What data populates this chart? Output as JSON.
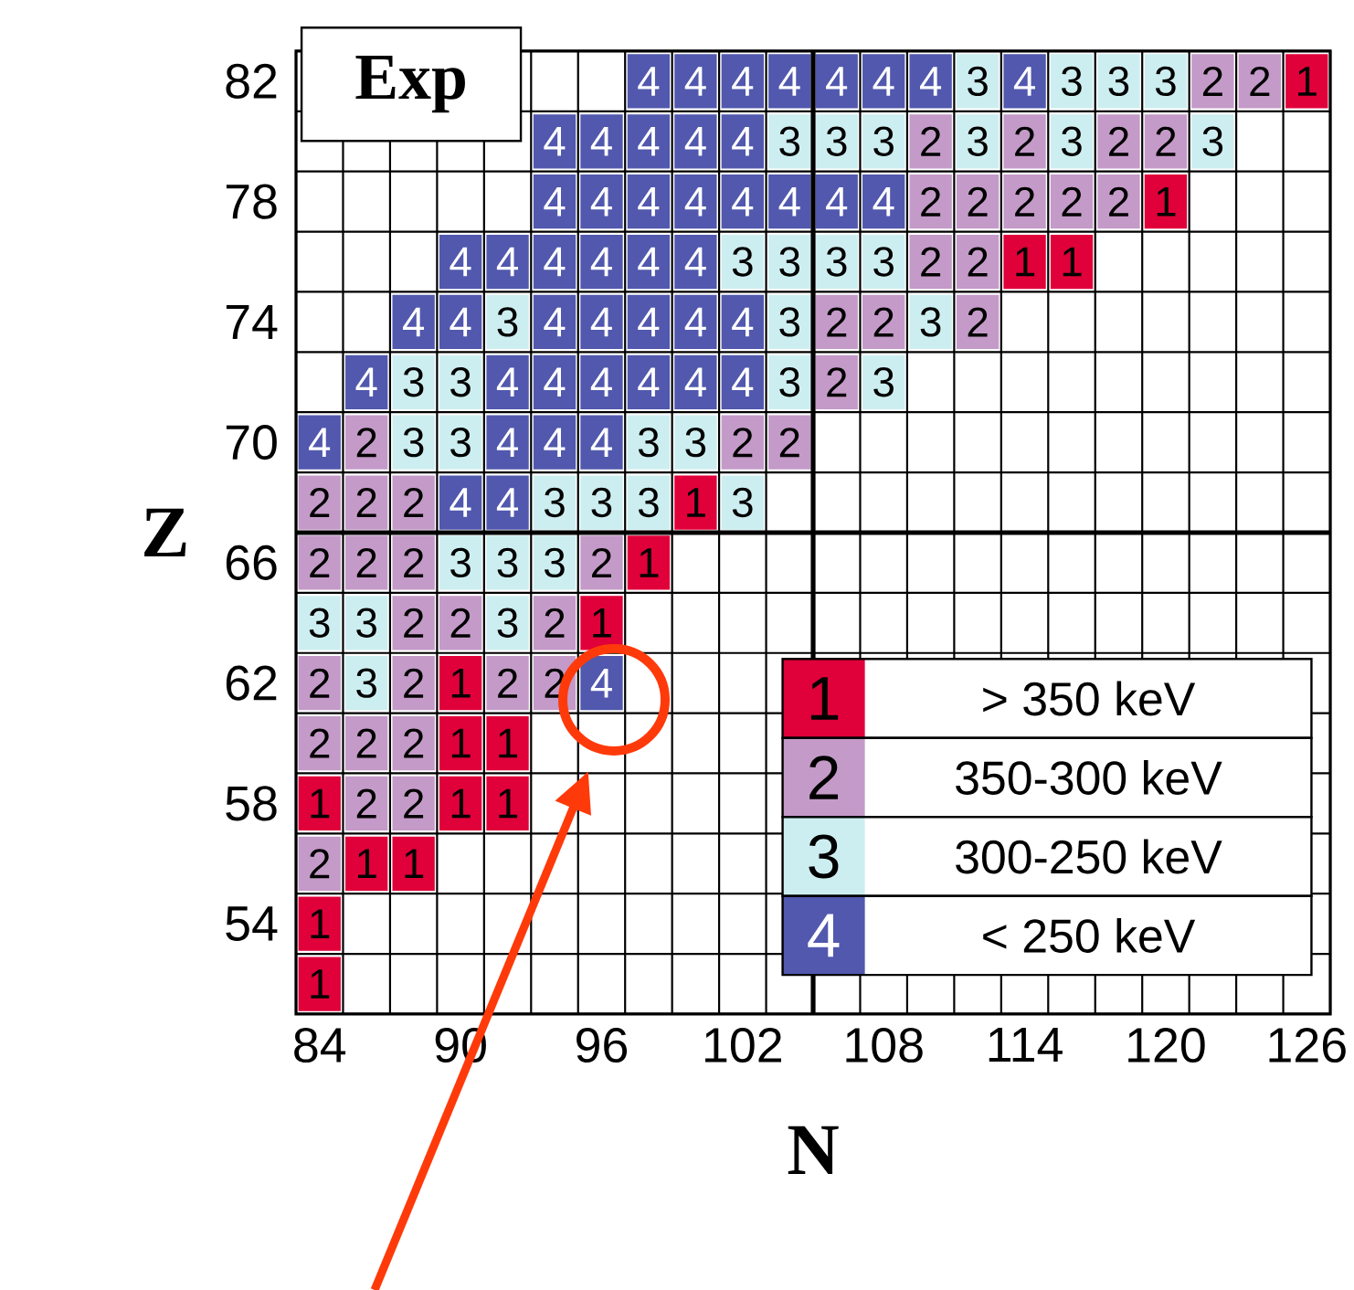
{
  "chart_data": {
    "type": "heatmap",
    "xlabel": "N",
    "ylabel": "Z",
    "categories": [
      "84",
      null,
      null,
      "90",
      null,
      null,
      "96",
      null,
      null,
      "102",
      null,
      null,
      "108",
      null,
      null,
      "114",
      null,
      null,
      "120",
      null,
      null,
      "126"
    ],
    "y_categories": [
      "82",
      null,
      "78",
      null,
      "74",
      null,
      "70",
      null,
      "66",
      null,
      "62",
      null,
      "58",
      null,
      "54",
      null
    ],
    "cells": [
      [
        null,
        null,
        null,
        null,
        null,
        null,
        null,
        4,
        4,
        4,
        4,
        4,
        4,
        4,
        3,
        4,
        3,
        3,
        3,
        2,
        2,
        1
      ],
      [
        null,
        null,
        null,
        null,
        null,
        4,
        4,
        4,
        4,
        4,
        3,
        3,
        3,
        2,
        3,
        2,
        3,
        2,
        2,
        3,
        null,
        null
      ],
      [
        null,
        null,
        null,
        null,
        null,
        4,
        4,
        4,
        4,
        4,
        4,
        4,
        4,
        2,
        2,
        2,
        2,
        2,
        1,
        null,
        null,
        null
      ],
      [
        null,
        null,
        null,
        4,
        4,
        4,
        4,
        4,
        4,
        3,
        3,
        3,
        3,
        2,
        2,
        1,
        1,
        null,
        null,
        null,
        null,
        null
      ],
      [
        null,
        null,
        4,
        4,
        3,
        4,
        4,
        4,
        4,
        4,
        3,
        2,
        2,
        3,
        2,
        null,
        null,
        null,
        null,
        null,
        null,
        null
      ],
      [
        null,
        4,
        3,
        3,
        4,
        4,
        4,
        4,
        4,
        4,
        3,
        2,
        3,
        null,
        null,
        null,
        null,
        null,
        null,
        null,
        null,
        null
      ],
      [
        4,
        2,
        3,
        3,
        4,
        4,
        4,
        3,
        3,
        2,
        2,
        null,
        null,
        null,
        null,
        null,
        null,
        null,
        null,
        null,
        null,
        null
      ],
      [
        2,
        2,
        2,
        4,
        4,
        3,
        3,
        3,
        1,
        3,
        null,
        null,
        null,
        null,
        null,
        null,
        null,
        null,
        null,
        null,
        null,
        null
      ],
      [
        2,
        2,
        2,
        3,
        3,
        3,
        2,
        1,
        null,
        null,
        null,
        null,
        null,
        null,
        null,
        null,
        null,
        null,
        null,
        null,
        null,
        null
      ],
      [
        3,
        3,
        2,
        2,
        3,
        2,
        1,
        null,
        null,
        null,
        null,
        null,
        null,
        null,
        null,
        null,
        null,
        null,
        null,
        null,
        null,
        null
      ],
      [
        2,
        3,
        2,
        1,
        2,
        2,
        4,
        null,
        null,
        null,
        null,
        null,
        null,
        null,
        null,
        null,
        null,
        null,
        null,
        null,
        null,
        null
      ],
      [
        2,
        2,
        2,
        1,
        1,
        null,
        null,
        null,
        null,
        null,
        null,
        null,
        null,
        null,
        null,
        null,
        null,
        null,
        null,
        null,
        null,
        null
      ],
      [
        1,
        2,
        2,
        1,
        1,
        null,
        null,
        null,
        null,
        null,
        null,
        null,
        null,
        null,
        null,
        null,
        null,
        null,
        null,
        null,
        null,
        null
      ],
      [
        2,
        1,
        1,
        null,
        null,
        null,
        null,
        null,
        null,
        null,
        null,
        null,
        null,
        null,
        null,
        null,
        null,
        null,
        null,
        null,
        null,
        null
      ],
      [
        1,
        null,
        null,
        null,
        null,
        null,
        null,
        null,
        null,
        null,
        null,
        null,
        null,
        null,
        null,
        null,
        null,
        null,
        null,
        null,
        null,
        null
      ],
      [
        1,
        null,
        null,
        null,
        null,
        null,
        null,
        null,
        null,
        null,
        null,
        null,
        null,
        null,
        null,
        null,
        null,
        null,
        null,
        null,
        null,
        null
      ]
    ],
    "data_labels": true,
    "colors": [
      "#e0003a",
      "#c49ac8",
      "#cdeef0",
      "#5158ad"
    ],
    "annotations": [
      "Exp",
      "1",
      "> 350 keV",
      "2",
      "350-300 keV",
      "3",
      "300-250 keV",
      "4",
      "< 250 keV"
    ]
  }
}
